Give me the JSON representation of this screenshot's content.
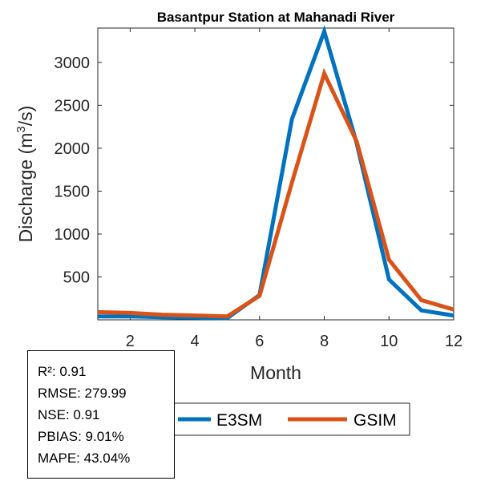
{
  "chart_data": {
    "type": "line",
    "title": "Basantpur  Station at  Mahanadi  River",
    "xlabel": "Month",
    "ylabel_main": "Discharge (m",
    "ylabel_sup": "3",
    "ylabel_end": "/s)",
    "x": [
      1,
      2,
      3,
      4,
      5,
      6,
      7,
      8,
      9,
      10,
      11,
      12
    ],
    "xlim": [
      1,
      12
    ],
    "ylim": [
      0,
      3400
    ],
    "xticks": [
      2,
      4,
      6,
      8,
      10,
      12
    ],
    "yticks": [
      500,
      1000,
      1500,
      2000,
      2500,
      3000
    ],
    "series": [
      {
        "name": "E3SM",
        "color": "#0072BD",
        "values": [
          40,
          40,
          30,
          25,
          20,
          290,
          2340,
          3360,
          2060,
          470,
          110,
          50
        ]
      },
      {
        "name": "GSIM",
        "color": "#D95319",
        "values": [
          90,
          80,
          60,
          50,
          40,
          280,
          1600,
          2870,
          2080,
          700,
          230,
          120
        ]
      }
    ],
    "legend_position": "bottom"
  },
  "stats": {
    "r2": "R²: 0.91",
    "rmse": "RMSE: 279.99",
    "nse": "NSE: 0.91",
    "pbias": "PBIAS: 9.01%",
    "mape": "MAPE: 43.04%"
  }
}
